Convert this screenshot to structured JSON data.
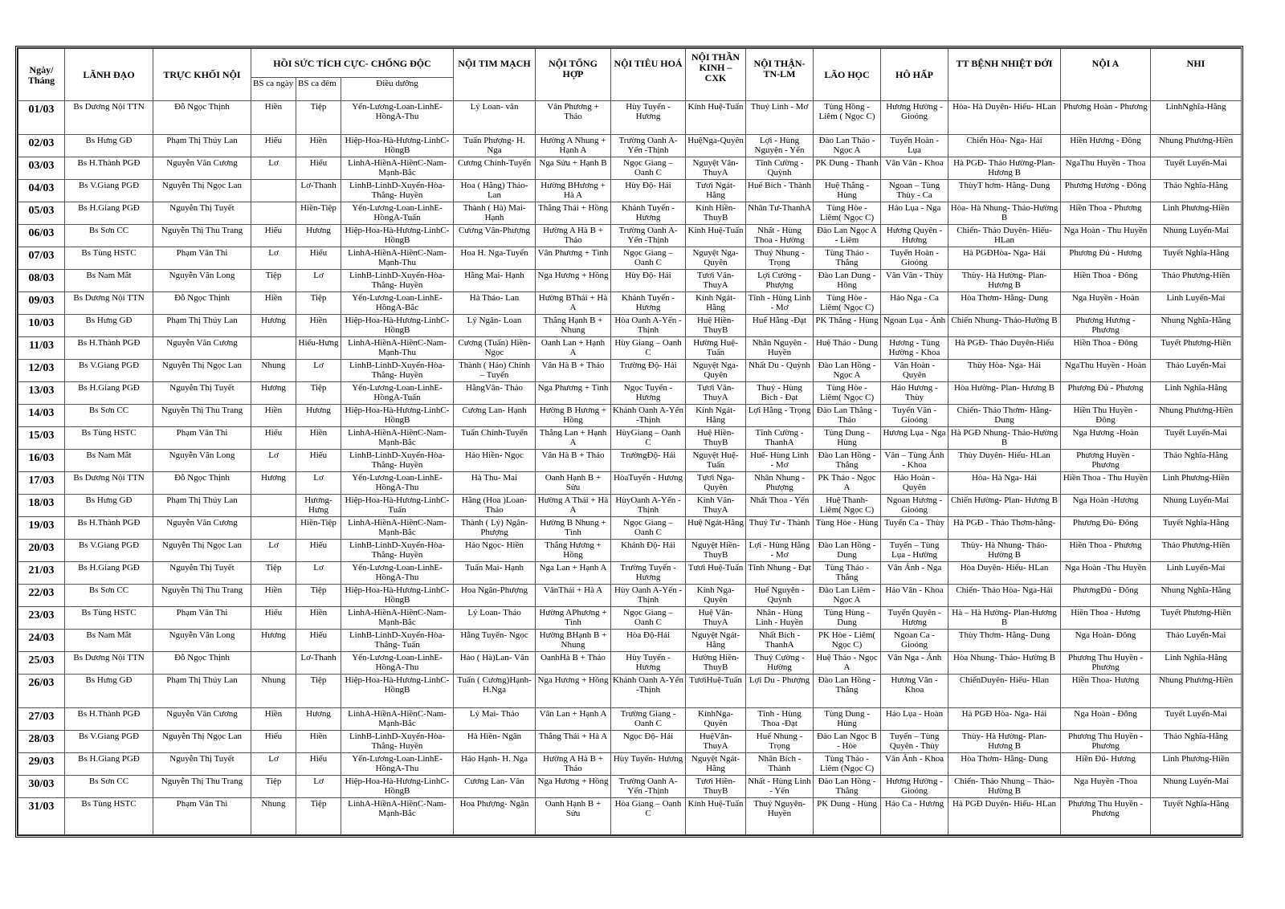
{
  "table": {
    "header": {
      "top": [
        "Ngày/ Tháng",
        "LÃNH ĐẠO",
        "TRỰC KHỐI NỘI",
        "HỒI SỨC TÍCH CỰC- CHỐNG ĐỘC",
        "NỘI TIM MẠCH",
        "NỘI TỔNG HỢP",
        "NỘI TIÊU HOÁ",
        "NỘI THẦN KINH – CXK",
        "NỘI THẬN-TN-LM",
        "LÃO HỌC",
        "HÔ HẤP",
        "TT BỆNH NHIỆT ĐỚI",
        "NỘI A",
        "NHI"
      ],
      "sub": [
        "BS ca ngày",
        "BS ca đêm",
        "Điều dưỡng"
      ]
    },
    "rows": [
      [
        "01/03",
        "Bs Dương Nội TTN",
        "Đỗ Ngọc Thịnh",
        "Hiền",
        "Tiệp",
        "Yến-Lương-Loan-LinhE-HồngA-Thu",
        "Lý Loan- vân",
        "Vân Phương + Thảo",
        "Hùy Tuyến - Hương",
        "Kính Huệ-Tuấn",
        "Thuý Linh - Mơ",
        "Tùng Hồng - Liêm ( Ngọc C)",
        "Hương Hường - Gioóng",
        "Hòa- Hà Duyên- Hiếu- HLan",
        "Phương Hoàn - Phương",
        "LinhNghĩa-Hằng"
      ],
      [
        "02/03",
        "Bs Hưng GĐ",
        "Phạm Thị Thúy Lan",
        "Hiếu",
        "Hiền",
        "Hiệp-Hoa-Hà-Hương-LinhC-HồngB",
        "Tuấn Phượng- H. Nga",
        "Hường A Nhung + Hạnh A",
        "Trường Oanh A-Yến -Thịnh",
        "HuệNga-Quyên",
        "Lợi - Hùng Nguyện - Yến",
        "Đào Lan Thảo - Ngọc A",
        "Tuyển Hoàn - Lụa",
        "Chiến Hòa- Nga- Hải",
        "Hiền Hương - Đông",
        "Nhung Phương-Hiền"
      ],
      [
        "03/03",
        "Bs H.Thành PGĐ",
        "Nguyễn Văn Cương",
        "Lơ",
        "Hiếu",
        "LinhA-HiềnA-HiềnC-Nam-Mạnh-Bắc",
        "Cương Chính-Tuyến",
        "Nga Sửu + Hạnh B",
        "Ngọc Giang – Oanh C",
        "Nguyệt Vân-ThuyA",
        "Tĩnh Cường - Quỳnh",
        "PK Dung - Thanh",
        "Vân Vân - Khoa",
        "Hà PGĐ- Thảo Hường-Plan- Hương B",
        "NgaThu Huyền - Thoa",
        "Tuyết Luyến-Mai"
      ],
      [
        "04/03",
        "Bs V.Giang PGĐ",
        "Nguyễn Thị Ngọc Lan",
        null,
        "Lơ-Thanh",
        "LinhB-LinhD-Xuyến-Hòa-Thắng- Huyền",
        "Hoa ( Hằng) Thảo- Lan",
        "Hường BHương + Hà A",
        "Hùy Độ- Hải",
        "Tươi Ngát-Hằng",
        "Huế Bích - Thành",
        "Huệ Thắng - Hùng",
        "Ngoan – Tùng Thùy - Ca",
        "ThùyT hơm- Hằng- Dung",
        "Phương Hương - Đông",
        "Thảo Nghĩa-Hằng"
      ],
      [
        "05/03",
        "Bs H.Giang PGĐ",
        "Nguyễn Thị Tuyết",
        null,
        "Hiền-Tiệp",
        "Yến-Lương-Loan-LinhE-HồngA-Tuấn",
        "Thành ( Hà) Mai-Hạnh",
        "Thắng Thái + Hồng",
        "Khánh Tuyến - Hương",
        "Kính Hiền-ThuyB",
        "Nhân Tư-ThanhA",
        "Tùng Hòe - Liêm( Ngọc C)",
        "Hảo Lụa - Nga",
        "Hòa- Hà Nhung- Thảo-Hường B",
        "Hiền Thoa - Phương",
        "Linh Phương-Hiền"
      ],
      [
        "06/03",
        "Bs Sơn CC",
        "Nguyễn Thị Thu Trang",
        "Hiếu",
        "Hương",
        "Hiệp-Hoa-Hà-Hương-LinhC-HồngB",
        "Cương Vân-Phượng",
        "Hường A Hà B + Thảo",
        "Trường Oanh A-Yến -Thịnh",
        "Kính Huệ-Tuấn",
        "Nhất - Hùng Thoa - Hường",
        "Đào Lan Ngọc A - Liêm",
        "Hương Quyên - Hương",
        "Chiến- Thảo Duyên- Hiếu-HLan",
        "Nga Hoàn - Thu Huyền",
        "Nhung Luyến-Mai"
      ],
      [
        "07/03",
        "Bs Tùng HSTC",
        "Phạm Văn Thi",
        "Lơ",
        "Hiếu",
        "LinhA-HiềnA-HiềnC-Nam-Mạnh-Thu",
        "Hoa H. Nga-Tuyến",
        "Vân Phương + Tình",
        "Ngọc Giang – Oanh C",
        "Nguyệt Nga-Quyên",
        "Thuý Nhung - Trọng",
        "Tùng Thảo - Thắng",
        "Tuyển Hoàn - Gioóng",
        "Hà PGĐHòa- Nga- Hải",
        "Phương Đủ - Hương",
        "Tuyết Nghĩa-Hằng"
      ],
      [
        "08/03",
        "Bs Nam Mắt",
        "Nguyễn Văn Long",
        "Tiệp",
        "Lơ",
        "LinhB-LinhD-Xuyến-Hòa-Thắng- Huyền",
        "Hằng Mai- Hạnh",
        "Nga Hương + Hồng",
        "Hùy Độ- Hải",
        "Tươi Vân-ThuyA",
        "Lợi Cường - Phượng",
        "Đào Lan Dung - Hồng",
        "Vân Vân - Thùy",
        "Thùy- Hà Hường- Plan-Hương B",
        "Hiền Thoa - Đông",
        "Thảo Phương-Hiền"
      ],
      [
        "09/03",
        "Bs Dương Nội TTN",
        "Đỗ Ngọc Thịnh",
        "Hiền",
        "Tiệp",
        "Yến-Lương-Loan-LinhE-HồngA-Bắc",
        "Hà Thảo- Lan",
        "Hường BThái + Hà A",
        "Khánh Tuyến - Hương",
        "Kính Ngát-Hằng",
        "Tĩnh - Hùng Linh - Mơ",
        "Tùng Hòe - Liêm( Ngọc C)",
        "Hảo Nga - Ca",
        "Hòa Thơm- Hằng- Dung",
        "Nga Huyền - Hoàn",
        "Linh Luyến-Mai"
      ],
      [
        "10/03",
        "Bs Hưng GĐ",
        "Phạm Thị Thúy Lan",
        "Hương",
        "Hiền",
        "Hiệp-Hoa-Hà-Hương-LinhC-HồngB",
        "Lý Ngân- Loan",
        "Thắng Hạnh B + Nhung",
        "Hòa Oanh A-Yến -Thịnh",
        "Huệ Hiền-ThuyB",
        "Huế Hằng -Đạt",
        "PK Thắng - Hùng",
        "Ngoan Lụa - Ánh",
        "Chiến Nhung- Thảo-Hường B",
        "Phương Hương - Phương",
        "Nhung Nghĩa-Hằng"
      ],
      [
        "11/03",
        "Bs H.Thành PGĐ",
        "Nguyễn Văn Cương",
        null,
        "Hiếu-Hưng",
        "LinhA-HiềnA-HiềnC-Nam-Mạnh-Thu",
        "Cương (Tuấn) Hiền- Ngọc",
        "Oanh Lan + Hạnh A",
        "Hùy Giang – Oanh C",
        "Hường Huệ-Tuấn",
        "Nhân Nguyên - Huyền",
        "Huệ Thảo - Dung",
        "Hương - Tùng Hường - Khoa",
        "Hà PGĐ- Thảo Duyên-Hiếu",
        "Hiền Thoa - Đông",
        "Tuyết Phương-Hiền"
      ],
      [
        "12/03",
        "Bs V.Giang PGĐ",
        "Nguyễn Thị Ngọc Lan",
        "Nhung",
        "Lơ",
        "LinhB-LinhD-Xuyến-Hòa-Thắng- Huyền",
        "Thành ( Hảo) Chính – Tuyến",
        "Vân Hà B + Thảo",
        "Trường Độ- Hải",
        "Nguyệt Nga-Quyên",
        "Nhất Du - Quỳnh",
        "Đào Lan Hồng - Ngọc A",
        "Vân Hoàn - Quyên",
        "Thùy Hòa- Nga- Hải",
        "NgaThu Huyền - Hoàn",
        "Thảo Luyến-Mai"
      ],
      [
        "13/03",
        "Bs H.Giang PGĐ",
        "Nguyễn Thị Tuyết",
        "Hương",
        "Tiệp",
        "Yến-Lương-Loan-LinhE-HồngA-Tuấn",
        "HằngVân- Thảo",
        "Nga Phương + Tình",
        "Ngọc Tuyến - Hương",
        "Tươi Vân-ThuyA",
        "Thuý - Hùng Bích - Đạt",
        "Tùng Hòe - Liêm( Ngọc C)",
        "Hảo Hương - Thùy",
        "Hòa Hường- Plan- Hương B",
        "Phương Đủ - Phương",
        "Linh Nghĩa-Hằng"
      ],
      [
        "14/03",
        "Bs Sơn CC",
        "Nguyễn Thị Thu Trang",
        "Hiền",
        "Hương",
        "Hiệp-Hoa-Hà-Hương-LinhC-HồngB",
        "Cương Lan- Hạnh",
        "Hường B Hương + Hồng",
        "Khánh Oanh A-Yến -Thịnh",
        "Kính Ngát-Hằng",
        "Lợi Hằng - Trọng",
        "Đào Lan Thắng - Thảo",
        "Tuyển Vân - Gioóng",
        "Chiến- Thảo Thơm- Hằng-Dung",
        "Hiền Thu Huyền - Đông",
        "Nhung Phương-Hiền"
      ],
      [
        "15/03",
        "Bs Tùng HSTC",
        "Phạm Văn Thi",
        "Hiếu",
        "Hiền",
        "LinhA-HiềnA-HiềnC-Nam-Mạnh-Bắc",
        "Tuấn Chính-Tuyến",
        "Thắng Lan + Hạnh A",
        "HùyGiang – Oanh C",
        "Huệ Hiền-ThuyB",
        "Tĩnh Cường - ThanhA",
        "Tùng Dung - Hùng",
        "Hương Lụa - Nga",
        "Hà PGĐ Nhung- Thảo-Hường B",
        "Nga Hương -Hoàn",
        "Tuyết Luyến-Mai"
      ],
      [
        "16/03",
        "Bs Nam Mắt",
        "Nguyễn Văn Long",
        "Lơ",
        "Hiếu",
        "LinhB-LinhD-Xuyến-Hòa-Thắng- Huyền",
        "Hảo Hiền- Ngọc",
        "Vân Hà B + Thảo",
        "TrườngĐộ- Hải",
        "Nguyệt Huệ-Tuấn",
        "Huế- Hùng Linh - Mơ",
        "Đào Lan Hồng - Thắng",
        "Vân – Tùng Ánh - Khoa",
        "Thùy Duyên- Hiếu- HLan",
        "Phương Huyền - Phương",
        "Thảo Nghĩa-Hằng"
      ],
      [
        "17/03",
        "Bs Dương Nội TTN",
        "Đỗ Ngọc Thịnh",
        "Hương",
        "Lơ",
        "Yến-Lương-Loan-LinhE-HồngA-Thu",
        "Hà Thu- Mai",
        "Oanh Hạnh B + Sửu",
        "HòaTuyến - Hương",
        "Tươi Nga-Quyên",
        "Nhân Nhung - Phượng",
        "PK Thảo - Ngọc A",
        "Hảo Hoàn - Quyên",
        "Hòa- Hà Nga- Hải",
        "Hiền Thoa - Thu Huyền",
        "Linh Phương-Hiền"
      ],
      [
        "18/03",
        "Bs Hưng GĐ",
        "Phạm Thị Thúy Lan",
        null,
        "Hương-Hưng",
        "Hiệp-Hoa-Hà-Hương-LinhC-Tuấn",
        "Hằng (Hoa )Loan-Thảo",
        "Hường A Thái + Hà A",
        "HùyOanh A-Yến -Thịnh",
        "Kính Vân-ThuyA",
        "Nhất Thoa - Yến",
        "Huệ Thanh-Liêm( Ngọc C)",
        "Ngoan Hương - Gioóng",
        "Chiến Hường- Plan- Hương B",
        "Nga Hoàn -Hương",
        "Nhung Luyến-Mai"
      ],
      [
        "19/03",
        "Bs H.Thành PGĐ",
        "Nguyễn Văn Cương",
        null,
        "Hiền-Tiệp",
        "LinhA-HiềnA-HiềnC-Nam-Mạnh-Bắc",
        "Thành ( Lý) Ngân- Phượng",
        "Hường B Nhung + Tình",
        "Ngọc Giang – Oanh C",
        "Huệ Ngát-Hằng",
        "Thuý Tư - Thành",
        "Tùng Hòe - Hùng",
        "Tuyển Ca - Thùy",
        "Hà PGĐ - Thảo Thơm-hằng-",
        "Phương Đủ- Đông",
        "Tuyết Nghĩa-Hằng"
      ],
      [
        "20/03",
        "Bs V.Giang PGĐ",
        "Nguyễn Thị Ngọc Lan",
        "Lơ",
        "Hiếu",
        "LinhB-LinhD-Xuyến-Hòa-Thắng- Huyền",
        "Hảo Ngọc- Hiền",
        "Thắng Hương + Hồng",
        "Khánh Độ- Hải",
        "Nguyệt Hiền-ThuyB",
        "Lợi - Hùng Hằng - Mơ",
        "Đào Lan Hồng - Dung",
        "Tuyến – Tùng Lụa - Hường",
        "Thùy- Hà Nhung- Thảo-Hường B",
        "Hiền Thoa - Phương",
        "Thảo Phương-Hiền"
      ],
      [
        "21/03",
        "Bs H.Giang PGĐ",
        "Nguyễn Thị Tuyết",
        "Tiệp",
        "Lơ",
        "Yến-Lương-Loan-LinhE-HồngA-Thu",
        "Tuấn Mai- Hạnh",
        "Nga Lan + Hạnh A",
        "Trường Tuyến - Hương",
        "Tươi Huệ-Tuấn",
        "Tĩnh Nhung - Đạt",
        "Tùng Thảo - Thắng",
        "Vân Ánh - Nga",
        "Hòa Duyên- Hiếu- HLan",
        "Nga Hoàn -Thu Huyền",
        "Linh Luyến-Mai"
      ],
      [
        "22/03",
        "Bs Sơn CC",
        "Nguyễn Thị Thu Trang",
        "Hiền",
        "Tiệp",
        "Hiệp-Hoa-Hà-Hương-LinhC-HồngB",
        "Hoa Ngân-Phượng",
        "VânThái + Hà A",
        "Hùy Oanh A-Yến -Thịnh",
        "Kính Nga-Quyên",
        "Huế Nguyên - Quỳnh",
        "Đào Lan Liêm - Ngọc A",
        "Hảo Vân - Khoa",
        "Chiến- Thảo Hòa- Nga-Hải",
        "PhươngĐủ - Đông",
        "Nhung Nghĩa-Hằng"
      ],
      [
        "23/03",
        "Bs Tùng HSTC",
        "Phạm Văn Thi",
        "Hiếu",
        "Hiền",
        "LinhA-HiềnA-HiềnC-Nam-Mạnh-Bắc",
        "Lý Loan- Thảo",
        "Hường APhương + Tình",
        "Ngọc Giang – Oanh C",
        "Huệ Vân-ThuyA",
        "Nhân - Hùng Linh - Huyền",
        "Tùng Hùng - Dung",
        "Tuyển Quyên - Hương",
        "Hà – Hà Hường- Plan-Hương B",
        "Hiền Thoa - Hương",
        "Tuyết Phương-Hiền"
      ],
      [
        "24/03",
        "Bs Nam Mắt",
        "Nguyễn Văn Long",
        "Hương",
        "Hiếu",
        "LinhB-LinhD-Xuyến-Hòa-Thắng- Tuấn",
        "Hằng Tuyến- Ngọc",
        "Hường BHạnh B + Nhung",
        "Hòa Độ-Hải",
        "Nguyệt Ngát-Hằng",
        "Nhất Bích - ThanhA",
        "PK Hòe - Liêm( Ngọc C)",
        "Ngoan Ca - Gioóng",
        "Thùy Thơm- Hằng- Dung",
        "Nga Hoàn- Đông",
        "Thảo Luyến-Mai"
      ],
      [
        "25/03",
        "Bs Dương Nội TTN",
        "Đỗ Ngọc Thịnh",
        null,
        "Lơ-Thanh",
        "Yến-Lương-Loan-LinhE-HồngA-Thu",
        "Hảo ( Hà)Lan- Vân",
        "OanhHà B + Thảo",
        "Hùy Tuyến - Hương",
        "Hường Hiền-ThuyB",
        "Thuý Cường - Hường",
        "Huệ Thảo - Ngọc A",
        "Vân Nga - Ánh",
        "Hòa Nhung- Thảo- Hường B",
        "Phương Thu Huyền - Phương",
        "Linh Nghĩa-Hằng"
      ],
      [
        "26/03",
        "Bs Hưng GĐ",
        "Phạm Thị Thúy Lan",
        "Nhung",
        "Tiệp",
        "Hiệp-Hoa-Hà-Hương-LinhC-HồngB",
        "Tuấn ( Cương)Hạnh-H.Nga",
        "Nga Hương + Hồng",
        "Khánh Oanh A-Yến -Thịnh",
        "TươiHuệ-Tuấn",
        "Lợi Du - Phượng",
        "Đào Lan Hồng - Thắng",
        "Hương Vân - Khoa",
        "ChiếnDuyên- Hiếu- Hlan",
        "Hiền Thoa- Hương",
        "Nhung Phương-Hiền"
      ],
      [
        "27/03",
        "Bs H.Thành PGĐ",
        "Nguyễn Văn Cương",
        "Hiền",
        "Hương",
        "LinhA-HiềnA-HiềnC-Nam-Mạnh-Bắc",
        "Lý Mai- Thảo",
        "Vân Lan + Hạnh A",
        "Trường Giang - Oanh C",
        "KínhNga-Quyên",
        "Tĩnh - Hùng Thoa -Đạt",
        "Tùng Dung - Hùng",
        "Hảo Lụa - Hoàn",
        "Hà PGĐ Hòa- Nga- Hải",
        "Nga Hoàn - Đông",
        "Tuyết Luyến-Mai"
      ],
      [
        "28/03",
        "Bs V.Giang PGĐ",
        "Nguyễn Thị Ngọc Lan",
        "Hiếu",
        "Hiền",
        "LinhB-LinhD-Xuyến-Hòa-Thắng- Huyền",
        "Hà Hiền- Ngân",
        "Thắng Thái + Hà A",
        "Ngọc Độ- Hải",
        "HuệVân-ThuyA",
        "Huế Nhung - Trọng",
        "Đào Lan Ngọc B - Hòe",
        "Tuyển – Tùng Quyên - Thùy",
        "Thùy- Hà Hường- Plan-Hương B",
        "Phương Thu Huyền - Phương",
        "Thảo Nghĩa-Hằng"
      ],
      [
        "29/03",
        "Bs H.Giang PGĐ",
        "Nguyễn Thị Tuyết",
        "Lơ",
        "Hiếu",
        "Yến-Lương-Loan-LinhE-HồngA-Thu",
        "Hảo Hạnh- H. Nga",
        "Hường A Hà B + Thảo",
        "Hùy Tuyến- Hương",
        "Nguyệt Ngát-Hằng",
        "Nhân Bích - Thành",
        "Tùng Thảo - Liêm (Ngọc C)",
        "Vân Ánh - Khoa",
        "Hòa Thơm- Hằng- Dung",
        "Hiền Đủ- Hương",
        "Linh Phương-Hiền"
      ],
      [
        "30/03",
        "Bs Sơn CC",
        "Nguyễn Thị Thu Trang",
        "Tiệp",
        "Lơ",
        "Hiệp-Hoa-Hà-Hương-LinhC-HồngB",
        "Cương Lan- Vân",
        "Nga Hương + Hồng",
        "Trường Oanh A-Yến -Thịnh",
        "Tươi Hiền-ThuyB",
        "Nhất - Hùng Linh - Yến",
        "Đào Lan Hồng - Thắng",
        "Hương Hường - Gioóng",
        "Chiến- Thảo Nhung – Thảo- Hường B",
        "Nga Huyền -Thoa",
        "Nhung Luyến-Mai"
      ],
      [
        "31/03",
        "Bs Tùng HSTC",
        "Phạm Văn Thi",
        "Nhung",
        "Tiệp",
        "LinhA-HiềnA-HiềnC-Nam-Mạnh-Bắc",
        "Hoa Phượng- Ngân",
        "Oanh Hạnh B + Sửu",
        "Hòa Giang – Oanh C",
        "Kính Huệ-Tuấn",
        "Thuý Nguyên- Huyền",
        "PK Dung - Hùng",
        "Hảo Ca - Hương",
        "Hà PGĐ Duyên- Hiếu- HLan",
        "Phương Thu Huyền - Phương",
        "Tuyết Nghĩa-Hằng"
      ]
    ]
  }
}
